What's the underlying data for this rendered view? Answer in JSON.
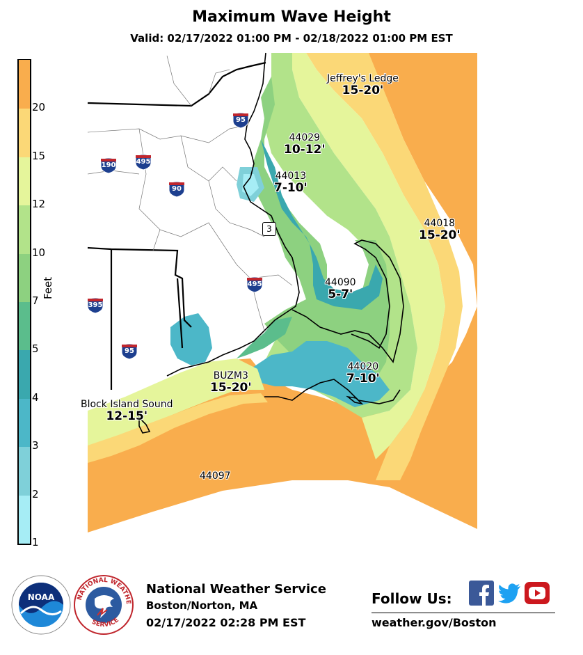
{
  "header": {
    "title": "Maximum Wave Height",
    "valid": "Valid: 02/17/2022 01:00 PM - 02/18/2022 01:00 PM EST"
  },
  "legend": {
    "unit_label": "Feet",
    "ticks": [
      "1",
      "2",
      "3",
      "4",
      "5",
      "7",
      "10",
      "12",
      "15",
      "20"
    ],
    "colors": [
      "#a6edf5",
      "#7fd0d9",
      "#4cb7c8",
      "#3aa8ae",
      "#5bbd8c",
      "#8dd180",
      "#b2e38a",
      "#e5f59b",
      "#fbd877",
      "#f9ad4d"
    ]
  },
  "locations": [
    {
      "name": "Jeffrey's Ledge",
      "value": "15-20'"
    },
    {
      "name": "44029",
      "value": "10-12'"
    },
    {
      "name": "44013",
      "value": "7-10'"
    },
    {
      "name": "44018",
      "value": "15-20'"
    },
    {
      "name": "44090",
      "value": "5-7'"
    },
    {
      "name": "44020",
      "value": "7-10'"
    },
    {
      "name": "BUZM3",
      "value": "15-20'"
    },
    {
      "name": "Block Island Sound",
      "value": "12-15'"
    },
    {
      "name": "44097",
      "value": ""
    }
  ],
  "highways": [
    {
      "num": "95",
      "icon": "interstate-shield-icon"
    },
    {
      "num": "190",
      "icon": "interstate-shield-icon"
    },
    {
      "num": "495",
      "icon": "interstate-shield-icon"
    },
    {
      "num": "90",
      "icon": "interstate-shield-icon"
    },
    {
      "num": "495",
      "icon": "interstate-shield-icon"
    },
    {
      "num": "395",
      "icon": "interstate-shield-icon"
    },
    {
      "num": "95",
      "icon": "interstate-shield-icon"
    },
    {
      "num": "3",
      "icon": "state-route-icon"
    }
  ],
  "footer": {
    "agency": "National Weather Service",
    "office": "Boston/Norton, MA",
    "issued": "02/17/2022 02:28 PM EST",
    "follow": "Follow Us:",
    "url": "weather.gov/Boston",
    "noaa_logo_text": "NOAA",
    "nws_logo_text": "NATIONAL WEATHER SERVICE"
  },
  "social": [
    {
      "icon": "facebook-icon",
      "color": "#3b5998"
    },
    {
      "icon": "twitter-icon",
      "color": "#1da1f2"
    },
    {
      "icon": "youtube-icon",
      "color": "#cc181e"
    }
  ]
}
